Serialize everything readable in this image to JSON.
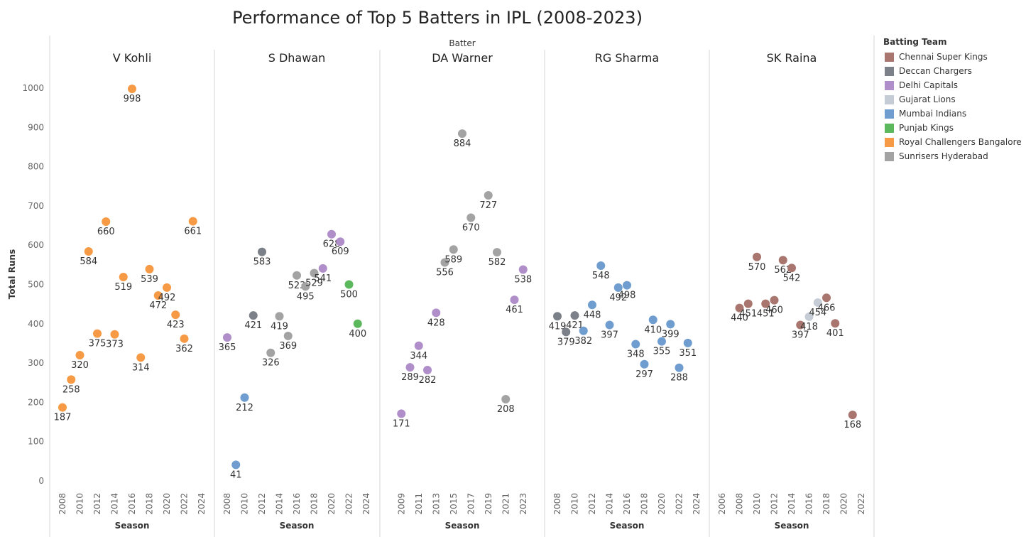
{
  "colors": {
    "Chennai Super Kings": "#a8766e",
    "Deccan Chargers": "#7c8189",
    "Delhi Capitals": "#af8ec9",
    "Gujarat Lions": "#c6ccd6",
    "Mumbai Indians": "#6f9dcf",
    "Punjab Kings": "#5cb85c",
    "Royal Challengers Bangalore": "#f79a45",
    "Sunrisers Hyderabad": "#a3a3a3"
  },
  "chart_data": {
    "type": "scatter",
    "title": "Performance of Top 5 Batters in IPL (2008-2023)",
    "facet_header": "Batter",
    "ylabel": "Total Runs",
    "xlabel": "Season",
    "ylim": [
      0,
      1000
    ],
    "y_ticks": [
      0,
      100,
      200,
      300,
      400,
      500,
      600,
      700,
      800,
      900,
      1000
    ],
    "grid": false,
    "legend_position": "right",
    "legend_title": "Batting Team",
    "legend": [
      "Chennai Super Kings",
      "Deccan Chargers",
      "Delhi Capitals",
      "Gujarat Lions",
      "Mumbai Indians",
      "Punjab Kings",
      "Royal Challengers Bangalore",
      "Sunrisers Hyderabad"
    ],
    "panels": [
      {
        "batter": "V Kohli",
        "xlim": [
          2008,
          2024
        ],
        "x_ticks": [
          2008,
          2010,
          2012,
          2014,
          2016,
          2018,
          2020,
          2022,
          2024
        ],
        "points": [
          {
            "season": 2008,
            "runs": 187,
            "team": "Royal Challengers Bangalore"
          },
          {
            "season": 2009,
            "runs": 258,
            "team": "Royal Challengers Bangalore"
          },
          {
            "season": 2010,
            "runs": 320,
            "team": "Royal Challengers Bangalore"
          },
          {
            "season": 2011,
            "runs": 584,
            "team": "Royal Challengers Bangalore"
          },
          {
            "season": 2012,
            "runs": 375,
            "team": "Royal Challengers Bangalore"
          },
          {
            "season": 2013,
            "runs": 660,
            "team": "Royal Challengers Bangalore"
          },
          {
            "season": 2014,
            "runs": 373,
            "team": "Royal Challengers Bangalore"
          },
          {
            "season": 2015,
            "runs": 519,
            "team": "Royal Challengers Bangalore"
          },
          {
            "season": 2016,
            "runs": 998,
            "team": "Royal Challengers Bangalore"
          },
          {
            "season": 2017,
            "runs": 314,
            "team": "Royal Challengers Bangalore"
          },
          {
            "season": 2018,
            "runs": 539,
            "team": "Royal Challengers Bangalore"
          },
          {
            "season": 2019,
            "runs": 472,
            "team": "Royal Challengers Bangalore"
          },
          {
            "season": 2020,
            "runs": 492,
            "team": "Royal Challengers Bangalore"
          },
          {
            "season": 2021,
            "runs": 423,
            "team": "Royal Challengers Bangalore"
          },
          {
            "season": 2022,
            "runs": 362,
            "team": "Royal Challengers Bangalore"
          },
          {
            "season": 2023,
            "runs": 661,
            "team": "Royal Challengers Bangalore"
          }
        ]
      },
      {
        "batter": "S Dhawan",
        "xlim": [
          2008,
          2024
        ],
        "x_ticks": [
          2008,
          2010,
          2012,
          2014,
          2016,
          2018,
          2020,
          2022,
          2024
        ],
        "points": [
          {
            "season": 2008,
            "runs": 365,
            "team": "Delhi Capitals"
          },
          {
            "season": 2009,
            "runs": 41,
            "team": "Mumbai Indians"
          },
          {
            "season": 2010,
            "runs": 212,
            "team": "Mumbai Indians"
          },
          {
            "season": 2011,
            "runs": 421,
            "team": "Deccan Chargers"
          },
          {
            "season": 2012,
            "runs": 583,
            "team": "Deccan Chargers"
          },
          {
            "season": 2013,
            "runs": 326,
            "team": "Sunrisers Hyderabad"
          },
          {
            "season": 2014,
            "runs": 419,
            "team": "Sunrisers Hyderabad"
          },
          {
            "season": 2015,
            "runs": 369,
            "team": "Sunrisers Hyderabad"
          },
          {
            "season": 2016,
            "runs": 523,
            "team": "Sunrisers Hyderabad"
          },
          {
            "season": 2017,
            "runs": 495,
            "team": "Sunrisers Hyderabad"
          },
          {
            "season": 2018,
            "runs": 529,
            "team": "Sunrisers Hyderabad"
          },
          {
            "season": 2019,
            "runs": 541,
            "team": "Delhi Capitals"
          },
          {
            "season": 2020,
            "runs": 628,
            "team": "Delhi Capitals"
          },
          {
            "season": 2021,
            "runs": 609,
            "team": "Delhi Capitals"
          },
          {
            "season": 2022,
            "runs": 500,
            "team": "Punjab Kings"
          },
          {
            "season": 2023,
            "runs": 400,
            "team": "Punjab Kings"
          }
        ]
      },
      {
        "batter": "DA Warner",
        "xlim": [
          2008,
          2024
        ],
        "x_ticks": [
          2009,
          2011,
          2013,
          2015,
          2017,
          2019,
          2021,
          2023
        ],
        "points": [
          {
            "season": 2009,
            "runs": 171,
            "team": "Delhi Capitals"
          },
          {
            "season": 2010,
            "runs": 289,
            "team": "Delhi Capitals"
          },
          {
            "season": 2011,
            "runs": 344,
            "team": "Delhi Capitals"
          },
          {
            "season": 2012,
            "runs": 282,
            "team": "Delhi Capitals"
          },
          {
            "season": 2013,
            "runs": 428,
            "team": "Delhi Capitals"
          },
          {
            "season": 2014,
            "runs": 556,
            "team": "Sunrisers Hyderabad"
          },
          {
            "season": 2015,
            "runs": 589,
            "team": "Sunrisers Hyderabad"
          },
          {
            "season": 2016,
            "runs": 884,
            "team": "Sunrisers Hyderabad"
          },
          {
            "season": 2017,
            "runs": 670,
            "team": "Sunrisers Hyderabad"
          },
          {
            "season": 2019,
            "runs": 727,
            "team": "Sunrisers Hyderabad"
          },
          {
            "season": 2020,
            "runs": 582,
            "team": "Sunrisers Hyderabad"
          },
          {
            "season": 2021,
            "runs": 208,
            "team": "Sunrisers Hyderabad"
          },
          {
            "season": 2022,
            "runs": 461,
            "team": "Delhi Capitals"
          },
          {
            "season": 2023,
            "runs": 538,
            "team": "Delhi Capitals"
          }
        ]
      },
      {
        "batter": "RG Sharma",
        "xlim": [
          2008,
          2024
        ],
        "x_ticks": [
          2008,
          2010,
          2012,
          2014,
          2016,
          2018,
          2020,
          2022,
          2024
        ],
        "points": [
          {
            "season": 2008,
            "runs": 419,
            "team": "Deccan Chargers"
          },
          {
            "season": 2009,
            "runs": 379,
            "team": "Deccan Chargers"
          },
          {
            "season": 2010,
            "runs": 421,
            "team": "Deccan Chargers"
          },
          {
            "season": 2011,
            "runs": 382,
            "team": "Mumbai Indians"
          },
          {
            "season": 2012,
            "runs": 448,
            "team": "Mumbai Indians"
          },
          {
            "season": 2013,
            "runs": 548,
            "team": "Mumbai Indians"
          },
          {
            "season": 2014,
            "runs": 397,
            "team": "Mumbai Indians"
          },
          {
            "season": 2015,
            "runs": 492,
            "team": "Mumbai Indians"
          },
          {
            "season": 2016,
            "runs": 498,
            "team": "Mumbai Indians"
          },
          {
            "season": 2017,
            "runs": 348,
            "team": "Mumbai Indians"
          },
          {
            "season": 2018,
            "runs": 297,
            "team": "Mumbai Indians"
          },
          {
            "season": 2019,
            "runs": 410,
            "team": "Mumbai Indians"
          },
          {
            "season": 2020,
            "runs": 355,
            "team": "Mumbai Indians"
          },
          {
            "season": 2021,
            "runs": 399,
            "team": "Mumbai Indians"
          },
          {
            "season": 2022,
            "runs": 288,
            "team": "Mumbai Indians"
          },
          {
            "season": 2023,
            "runs": 351,
            "team": "Mumbai Indians"
          }
        ]
      },
      {
        "batter": "SK Raina",
        "xlim": [
          2006,
          2022
        ],
        "x_ticks": [
          2006,
          2008,
          2010,
          2012,
          2014,
          2016,
          2018,
          2020,
          2022
        ],
        "points": [
          {
            "season": 2008,
            "runs": 440,
            "team": "Chennai Super Kings"
          },
          {
            "season": 2009,
            "runs": 451,
            "team": "Chennai Super Kings"
          },
          {
            "season": 2010,
            "runs": 570,
            "team": "Chennai Super Kings"
          },
          {
            "season": 2011,
            "runs": 451,
            "team": "Chennai Super Kings"
          },
          {
            "season": 2012,
            "runs": 460,
            "team": "Chennai Super Kings"
          },
          {
            "season": 2013,
            "runs": 562,
            "team": "Chennai Super Kings"
          },
          {
            "season": 2014,
            "runs": 542,
            "team": "Chennai Super Kings"
          },
          {
            "season": 2015,
            "runs": 397,
            "team": "Chennai Super Kings"
          },
          {
            "season": 2016,
            "runs": 418,
            "team": "Gujarat Lions"
          },
          {
            "season": 2017,
            "runs": 454,
            "team": "Gujarat Lions"
          },
          {
            "season": 2018,
            "runs": 466,
            "team": "Chennai Super Kings"
          },
          {
            "season": 2019,
            "runs": 401,
            "team": "Chennai Super Kings"
          },
          {
            "season": 2021,
            "runs": 168,
            "team": "Chennai Super Kings"
          }
        ]
      }
    ]
  }
}
